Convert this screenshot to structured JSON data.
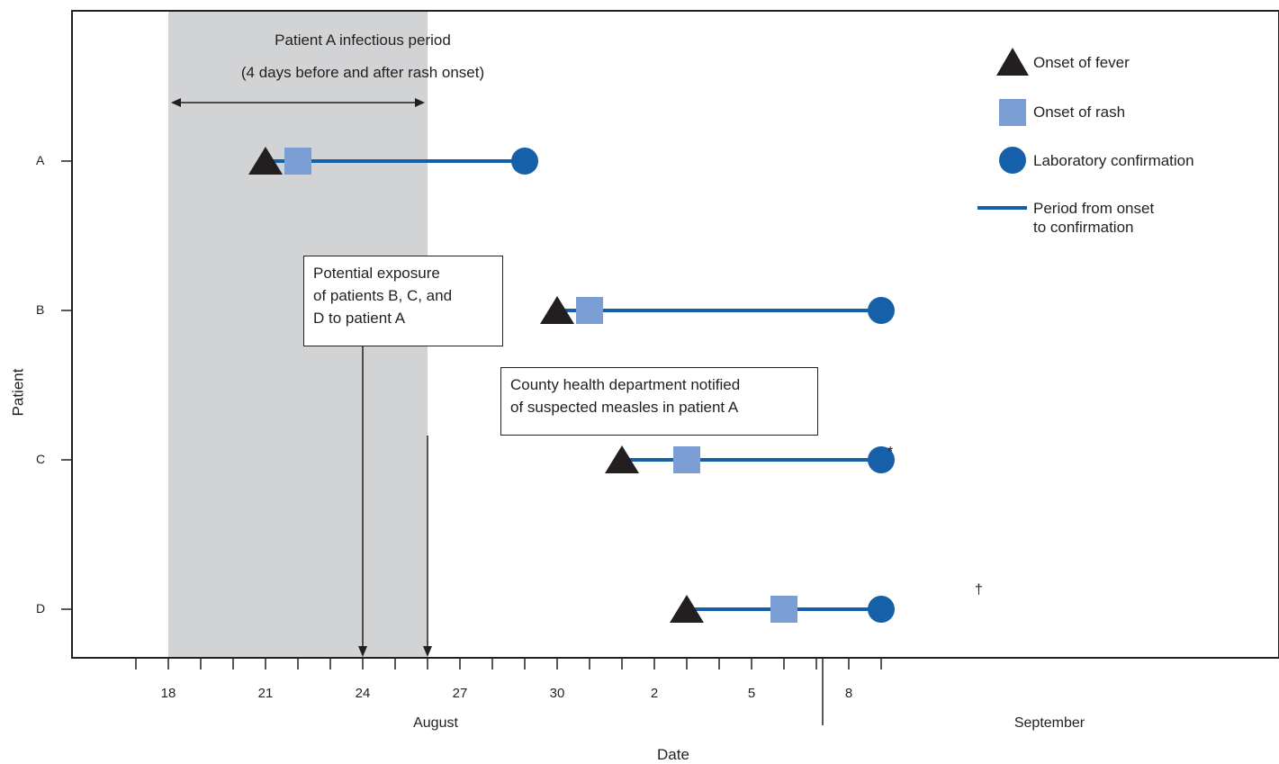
{
  "chart_data": {
    "type": "timeline",
    "xlabel": "Date",
    "ylabel": "Patient",
    "months": [
      "August",
      "September"
    ],
    "x_ticks": [
      {
        "date": "2018-08-18",
        "label": "18"
      },
      {
        "date": "2018-08-21",
        "label": "21"
      },
      {
        "date": "2018-08-24",
        "label": "24"
      },
      {
        "date": "2018-08-27",
        "label": "27"
      },
      {
        "date": "2018-08-30",
        "label": "30"
      },
      {
        "date": "2018-09-02",
        "label": "2"
      },
      {
        "date": "2018-09-05",
        "label": "5"
      },
      {
        "date": "2018-09-08",
        "label": "8"
      }
    ],
    "patients": [
      {
        "label": "A",
        "fever": "2018-08-21",
        "rash": "2018-08-22",
        "confirmation": "2018-08-29",
        "mark": ""
      },
      {
        "label": "B",
        "fever": "2018-08-30",
        "rash": "2018-08-31",
        "confirmation": "2018-09-09",
        "mark": ""
      },
      {
        "label": "C",
        "fever": "2018-09-01",
        "rash": "2018-09-03",
        "confirmation": "2018-09-09",
        "mark": "*"
      },
      {
        "label": "D",
        "fever": "2018-09-03",
        "rash": "2018-09-06",
        "confirmation": "2018-09-09",
        "mark": "†"
      }
    ],
    "infectious_period": {
      "start": "2018-08-18",
      "end": "2018-08-26",
      "title_line1": "Patient A infectious period",
      "title_line2": "(4 days before and after rash onset)"
    },
    "annotations": [
      {
        "date": "2018-08-24",
        "lines": [
          "Potential exposure",
          "of patients B, C, and",
          "D to patient A"
        ]
      },
      {
        "date": "2018-08-26",
        "lines": [
          "County health department notified",
          "of suspected measles in patient A"
        ]
      }
    ],
    "legend": {
      "fever": "Onset of fever",
      "rash": "Onset of rash",
      "confirmation": "Laboratory confirmation",
      "period_line1": "Period from onset",
      "period_line2": "to confirmation"
    },
    "colors": {
      "line": "#1560a8",
      "confirmation": "#1560a8",
      "rash": "#7b9fd4",
      "fever": "#231f20",
      "shade": "#d1d3d4"
    }
  }
}
